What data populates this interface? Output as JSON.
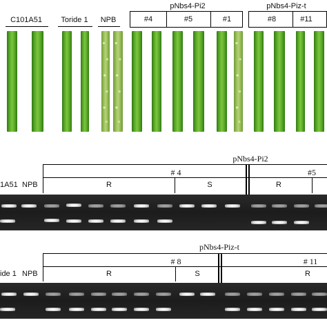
{
  "top_panel": {
    "groups": [
      "C101A51",
      "Toride 1",
      "NPB"
    ],
    "pi2_title": "pNbs4-Pi2",
    "pi2_lines": [
      "#4",
      "#5",
      "#1"
    ],
    "pizt_title": "pNbs4-Piz-t",
    "pizt_lines": [
      "#8",
      "#11"
    ]
  },
  "gel1": {
    "left_labels": [
      "1A51",
      "NPB"
    ],
    "title": "pNbs4-Pi2",
    "line_a": "# 4",
    "line_b": "#5",
    "phen_a_r": "R",
    "phen_a_s": "S",
    "phen_b_r": "R"
  },
  "gel2": {
    "left_labels": [
      "ide 1",
      "NPB"
    ],
    "title": "pNbs4-Piz-t",
    "line_a": "# 8",
    "line_b": "# 11",
    "phen_a_r": "R",
    "phen_a_s": "S",
    "phen_b_r": "R"
  },
  "colors": {
    "leaf_green": "#5aa828",
    "gel_background": "#1f1f1f",
    "band": "#f2f2f2"
  }
}
